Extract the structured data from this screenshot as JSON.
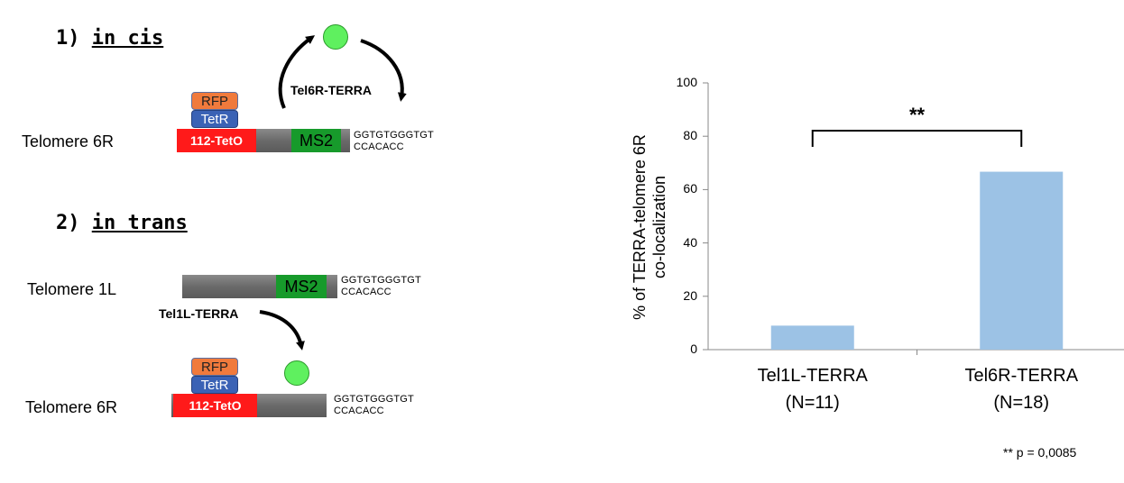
{
  "diagram": {
    "cis": {
      "number": "1)",
      "label": "in cis",
      "telomere_label": "Telomere 6R",
      "rfp": "RFP",
      "tetr": "TetR",
      "teto": "112-TetO",
      "ms2": "MS2",
      "seq_top": "GGTGTGGGTGT",
      "seq_bottom": "CCACACC",
      "terra_label": "Tel6R-TERRA"
    },
    "trans": {
      "number": "2)",
      "label": "in trans",
      "telomere1_label": "Telomere 1L",
      "ms2": "MS2",
      "seq1_top": "GGTGTGGGTGT",
      "seq1_bottom": "CCACACC",
      "terra_label": "Tel1L-TERRA",
      "rfp": "RFP",
      "tetr": "TetR",
      "telomere2_label": "Telomere 6R",
      "teto": "112-TetO",
      "seq2_top": "GGTGTGGGTGT",
      "seq2_bottom": "CCACACC"
    },
    "colors": {
      "terra_dot": "#5ff05f",
      "teto": "#ff1a1a",
      "ms2": "#179a2b",
      "rfp": "#f07a3c",
      "tetr": "#3a62b5"
    }
  },
  "chart_data": {
    "type": "bar",
    "categories": [
      "Tel1L-TERRA",
      "Tel6R-TERRA"
    ],
    "category_sublabels": [
      "(N=11)",
      "(N=18)"
    ],
    "values": [
      9,
      66.7
    ],
    "ylabel_line1": "% of TERRA-telomere 6R",
    "ylabel_line2": "co-localization",
    "ylim": [
      0,
      100
    ],
    "yticks": [
      "0",
      "20",
      "40",
      "60",
      "80",
      "100"
    ],
    "bar_color": "#9cc2e5",
    "significance": "**",
    "footnote": "** p = 0,0085",
    "grid": false
  }
}
